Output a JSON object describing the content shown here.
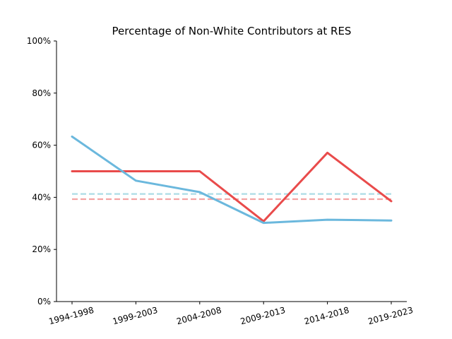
{
  "chart_data": {
    "type": "line",
    "title": "Percentage of Non-White Contributors at RES",
    "xlabel": "",
    "ylabel": "",
    "categories": [
      "1994-1998",
      "1999-2003",
      "2004-2008",
      "2009-2013",
      "2014-2018",
      "2019-2023"
    ],
    "ylim": [
      0,
      100
    ],
    "yticks": [
      0,
      20,
      40,
      60,
      80,
      100
    ],
    "ytick_labels": [
      "0%",
      "20%",
      "40%",
      "60%",
      "80%",
      "100%"
    ],
    "grid": false,
    "legend": "none",
    "series": [
      {
        "color": "#e94b4b",
        "line_style": "solid",
        "values": [
          50,
          50,
          50,
          30.8,
          57.1,
          38.5
        ]
      },
      {
        "color": "#6bb8dd",
        "line_style": "solid",
        "values": [
          63.3,
          46.4,
          42.0,
          30.2,
          31.4,
          31.1
        ]
      },
      {
        "color": "#f4a3a3",
        "line_style": "dashed",
        "values": [
          39.3,
          39.3,
          39.3,
          39.3,
          39.3,
          39.3
        ]
      },
      {
        "color": "#acdce6",
        "line_style": "dashed",
        "values": [
          41.3,
          41.3,
          41.3,
          41.3,
          41.3,
          41.3
        ]
      }
    ]
  }
}
